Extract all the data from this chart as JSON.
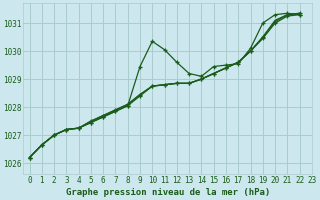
{
  "title": "Graphe pression niveau de la mer (hPa)",
  "bg_color": "#cce8ee",
  "grid_color": "#aacccc",
  "line_color": "#1a5c1a",
  "xlim": [
    -0.5,
    23
  ],
  "ylim": [
    1025.6,
    1031.7
  ],
  "yticks": [
    1026,
    1027,
    1028,
    1029,
    1030,
    1031
  ],
  "xticks": [
    0,
    1,
    2,
    3,
    4,
    5,
    6,
    7,
    8,
    9,
    10,
    11,
    12,
    13,
    14,
    15,
    16,
    17,
    18,
    19,
    20,
    21,
    22,
    23
  ],
  "series": [
    {
      "x": [
        0,
        1,
        2,
        3,
        4,
        5,
        6,
        7,
        8,
        9,
        10,
        11,
        12,
        13,
        14,
        15,
        16,
        17,
        18,
        19,
        20,
        21,
        22
      ],
      "y": [
        1026.2,
        1026.65,
        1027.0,
        1027.2,
        1027.25,
        1027.45,
        1027.65,
        1027.85,
        1028.05,
        1029.45,
        1030.35,
        1030.05,
        1029.6,
        1029.2,
        1029.1,
        1029.45,
        1029.5,
        1029.55,
        1030.1,
        1031.0,
        1031.3,
        1031.35,
        1031.3
      ],
      "marker": true
    },
    {
      "x": [
        0,
        1,
        2,
        3,
        4,
        5,
        6,
        7,
        8,
        9,
        10,
        11,
        12,
        13,
        14,
        15,
        16,
        17,
        18,
        19,
        20,
        21,
        22
      ],
      "y": [
        1026.2,
        1026.65,
        1027.0,
        1027.2,
        1027.25,
        1027.45,
        1027.65,
        1027.85,
        1028.05,
        1028.4,
        1028.75,
        1028.8,
        1028.85,
        1028.85,
        1029.0,
        1029.2,
        1029.4,
        1029.6,
        1030.0,
        1030.45,
        1031.0,
        1031.25,
        1031.3
      ],
      "marker": true
    },
    {
      "x": [
        0,
        1,
        2,
        3,
        4,
        5,
        6,
        7,
        8,
        9,
        10,
        11,
        12,
        13,
        14,
        15,
        16,
        17,
        18,
        19,
        20,
        21,
        22
      ],
      "y": [
        1026.2,
        1026.65,
        1027.0,
        1027.2,
        1027.25,
        1027.5,
        1027.7,
        1027.9,
        1028.1,
        1028.45,
        1028.75,
        1028.8,
        1028.85,
        1028.85,
        1029.0,
        1029.2,
        1029.4,
        1029.6,
        1030.0,
        1030.5,
        1031.05,
        1031.3,
        1031.35
      ],
      "marker": true
    },
    {
      "x": [
        0,
        1,
        2,
        3,
        4,
        5,
        6,
        7,
        8,
        9,
        10,
        11,
        12,
        13,
        14,
        15,
        16,
        17,
        18,
        19,
        20,
        21,
        22
      ],
      "y": [
        1026.2,
        1026.65,
        1027.0,
        1027.2,
        1027.25,
        1027.5,
        1027.7,
        1027.9,
        1028.1,
        1028.45,
        1028.75,
        1028.8,
        1028.85,
        1028.85,
        1029.0,
        1029.2,
        1029.4,
        1029.6,
        1030.0,
        1030.5,
        1031.1,
        1031.3,
        1031.35
      ],
      "marker": false
    }
  ],
  "marker_symbol": "+",
  "marker_size": 3.5,
  "linewidth": 0.9,
  "title_fontsize": 6.5,
  "tick_fontsize": 5.5
}
